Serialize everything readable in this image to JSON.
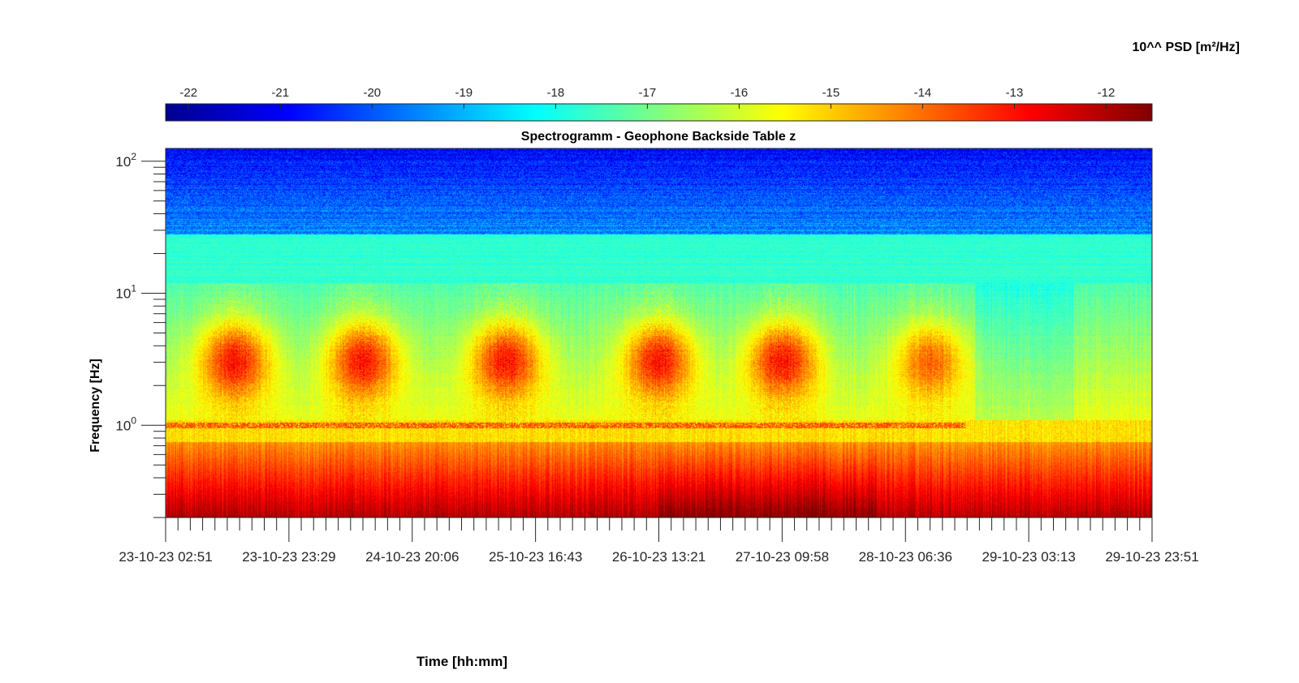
{
  "chart_data": {
    "type": "heatmap",
    "title": "Spectrogramm - Geophone Backside Table z",
    "xlabel": "Time [hh:mm]",
    "ylabel": "Frequency [Hz]",
    "y_scale": "log",
    "ylim": [
      0.2,
      125
    ],
    "y_ticks": [
      {
        "value": 1,
        "base": "10",
        "exp": "0"
      },
      {
        "value": 10,
        "base": "10",
        "exp": "1"
      },
      {
        "value": 100,
        "base": "10",
        "exp": "2"
      }
    ],
    "x_ticks": [
      "23-10-23 02:51",
      "23-10-23 23:29",
      "24-10-23 20:06",
      "25-10-23 16:43",
      "26-10-23 13:21",
      "27-10-23 09:58",
      "28-10-23 06:36",
      "29-10-23 03:13",
      "29-10-23 23:51"
    ],
    "colorbar": {
      "label": "10^^ PSD [m²/Hz]",
      "colormap": "jet",
      "range": [
        -22.25,
        -11.5
      ],
      "ticks": [
        "-22",
        "-21",
        "-20",
        "-19",
        "-18",
        "-17",
        "-16",
        "-15",
        "-14",
        "-13",
        "-12"
      ],
      "tick_values": [
        -22,
        -21,
        -20,
        -19,
        -18,
        -17,
        -16,
        -15,
        -14,
        -13,
        -12
      ]
    },
    "colormap_colors": [
      "#00008f",
      "#0000ff",
      "#00ffff",
      "#ffff00",
      "#ff0000",
      "#800000"
    ],
    "features": {
      "high_freq_band": {
        "f_min": 28,
        "f_max": 125,
        "log_psd": -19.5
      },
      "mid_band": {
        "f_min": 12,
        "f_max": 28,
        "log_psd": -17.7
      },
      "broad_band": {
        "f_min": 1.1,
        "f_max": 12,
        "log_psd": -16.2
      },
      "low_band": {
        "f_min": 0.2,
        "f_max": 0.7,
        "log_psd": -13.0
      },
      "daily_activity_centers": [
        "23-10-23 14:00",
        "24-10-23 12:00",
        "25-10-23 10:30",
        "26-10-23 07:30",
        "27-10-23 06:30",
        "28-10-23 08:00"
      ]
    }
  }
}
